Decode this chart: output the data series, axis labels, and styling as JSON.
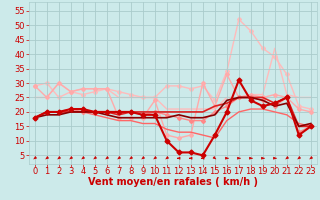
{
  "title": "",
  "xlabel": "Vent moyen/en rafales ( km/h )",
  "ylabel": "",
  "bg_color": "#cceaea",
  "grid_color": "#aacccc",
  "x": [
    0,
    1,
    2,
    3,
    4,
    5,
    6,
    7,
    8,
    9,
    10,
    11,
    12,
    13,
    14,
    15,
    16,
    17,
    18,
    19,
    20,
    21,
    22,
    23
  ],
  "ylim": [
    2,
    58
  ],
  "yticks": [
    5,
    10,
    15,
    20,
    25,
    30,
    35,
    40,
    45,
    50,
    55
  ],
  "xlim": [
    -0.5,
    23.5
  ],
  "series": [
    {
      "y": [
        29,
        25,
        30,
        27,
        28,
        28,
        28,
        18,
        18,
        18,
        24,
        12,
        11,
        12,
        30,
        22,
        33,
        25,
        26,
        25,
        26,
        25,
        21,
        20
      ],
      "color": "#ffaaaa",
      "lw": 1.0,
      "marker": "D",
      "ms": 2.0,
      "zorder": 2
    },
    {
      "y": [
        29,
        30,
        25,
        27,
        26,
        27,
        28,
        27,
        26,
        25,
        25,
        29,
        29,
        28,
        29,
        24,
        34,
        52,
        48,
        42,
        39,
        33,
        22,
        21
      ],
      "color": "#ffbbbb",
      "lw": 1.0,
      "marker": "D",
      "ms": 2.0,
      "zorder": 1
    },
    {
      "y": [
        25,
        25,
        30,
        27,
        28,
        28,
        28,
        25,
        25,
        25,
        25,
        21,
        21,
        21,
        21,
        21,
        25,
        25,
        26,
        26,
        42,
        26,
        25,
        25
      ],
      "color": "#ffbbbb",
      "lw": 1.0,
      "marker": null,
      "ms": 0,
      "zorder": 1
    },
    {
      "y": [
        18,
        20,
        20,
        20,
        20,
        19,
        18,
        17,
        17,
        16,
        16,
        14,
        13,
        13,
        12,
        11,
        17,
        20,
        21,
        21,
        20,
        19,
        16,
        15
      ],
      "color": "#ff6666",
      "lw": 1.0,
      "marker": null,
      "ms": 0,
      "zorder": 2
    },
    {
      "y": [
        18,
        20,
        20,
        21,
        20,
        20,
        20,
        20,
        20,
        19,
        20,
        19,
        18,
        17,
        17,
        20,
        22,
        25,
        25,
        24,
        22,
        25,
        13,
        15
      ],
      "color": "#ff8888",
      "lw": 1.0,
      "marker": "D",
      "ms": 2.0,
      "zorder": 2
    },
    {
      "y": [
        18,
        20,
        20,
        20,
        20,
        20,
        20,
        19,
        20,
        20,
        20,
        20,
        20,
        20,
        20,
        22,
        23,
        25,
        25,
        25,
        23,
        25,
        15,
        15
      ],
      "color": "#dd2222",
      "lw": 1.2,
      "marker": null,
      "ms": 0,
      "zorder": 3
    },
    {
      "y": [
        18,
        19,
        19,
        20,
        20,
        20,
        19,
        18,
        18,
        18,
        18,
        18,
        19,
        18,
        18,
        19,
        24,
        25,
        25,
        24,
        22,
        23,
        15,
        16
      ],
      "color": "#880000",
      "lw": 1.2,
      "marker": null,
      "ms": 0,
      "zorder": 3
    },
    {
      "y": [
        18,
        20,
        20,
        21,
        21,
        20,
        20,
        20,
        20,
        19,
        19,
        10,
        6,
        6,
        5,
        12,
        20,
        31,
        24,
        22,
        23,
        25,
        12,
        15
      ],
      "color": "#cc0000",
      "lw": 1.5,
      "marker": "D",
      "ms": 2.5,
      "zorder": 4
    }
  ],
  "arrow_angles": [
    225,
    225,
    225,
    225,
    225,
    225,
    225,
    225,
    225,
    225,
    225,
    225,
    270,
    270,
    270,
    135,
    90,
    90,
    90,
    90,
    90,
    225,
    225,
    225
  ],
  "arrow_color": "#cc0000",
  "xlabel_color": "#cc0000",
  "xlabel_fontsize": 7,
  "tick_label_color": "#cc0000",
  "tick_fontsize": 6
}
